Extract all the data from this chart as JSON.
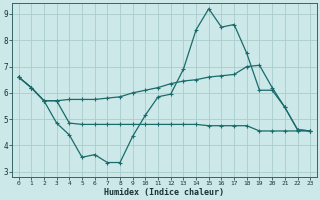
{
  "xlabel": "Humidex (Indice chaleur)",
  "xlim": [
    -0.5,
    23.5
  ],
  "ylim": [
    2.8,
    9.4
  ],
  "yticks": [
    3,
    4,
    5,
    6,
    7,
    8,
    9
  ],
  "xticks": [
    0,
    1,
    2,
    3,
    4,
    5,
    6,
    7,
    8,
    9,
    10,
    11,
    12,
    13,
    14,
    15,
    16,
    17,
    18,
    19,
    20,
    21,
    22,
    23
  ],
  "bg_color": "#cce8e8",
  "grid_color": "#aacccc",
  "line_color": "#1a6b6b",
  "line1_x": [
    0,
    1,
    2,
    3,
    4,
    5,
    6,
    7,
    8,
    9,
    10,
    11,
    12,
    13,
    14,
    15,
    16,
    17,
    18,
    19,
    20,
    21,
    22,
    23
  ],
  "line1_y": [
    6.6,
    6.2,
    5.7,
    5.7,
    5.75,
    5.75,
    5.75,
    5.8,
    5.85,
    6.0,
    6.1,
    6.2,
    6.35,
    6.45,
    6.5,
    6.6,
    6.65,
    6.7,
    7.0,
    7.05,
    6.2,
    5.45,
    4.6,
    4.55
  ],
  "line2_x": [
    0,
    1,
    2,
    3,
    4,
    5,
    6,
    7,
    8,
    9,
    10,
    11,
    12,
    13,
    14,
    15,
    16,
    17,
    18,
    19,
    20,
    21,
    22,
    23
  ],
  "line2_y": [
    6.6,
    6.2,
    5.7,
    4.85,
    4.4,
    3.55,
    3.65,
    3.35,
    3.35,
    4.35,
    5.15,
    5.85,
    5.95,
    6.9,
    8.4,
    9.2,
    8.5,
    8.6,
    7.5,
    6.1,
    6.1,
    5.45,
    4.6,
    4.55
  ],
  "line3_x": [
    0,
    1,
    2,
    3,
    4,
    5,
    6,
    7,
    8,
    9,
    10,
    11,
    12,
    13,
    14,
    15,
    16,
    17,
    18,
    19,
    20,
    21,
    22,
    23
  ],
  "line3_y": [
    6.6,
    6.2,
    5.7,
    5.7,
    4.85,
    4.8,
    4.8,
    4.8,
    4.8,
    4.8,
    4.8,
    4.8,
    4.8,
    4.8,
    4.8,
    4.75,
    4.75,
    4.75,
    4.75,
    4.55,
    4.55,
    4.55,
    4.55,
    4.55
  ]
}
